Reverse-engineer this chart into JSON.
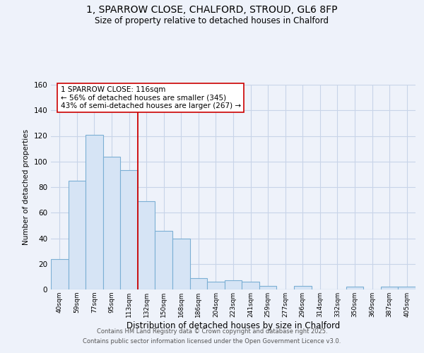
{
  "title": "1, SPARROW CLOSE, CHALFORD, STROUD, GL6 8FP",
  "subtitle": "Size of property relative to detached houses in Chalford",
  "xlabel": "Distribution of detached houses by size in Chalford",
  "ylabel": "Number of detached properties",
  "bar_labels": [
    "40sqm",
    "59sqm",
    "77sqm",
    "95sqm",
    "113sqm",
    "132sqm",
    "150sqm",
    "168sqm",
    "186sqm",
    "204sqm",
    "223sqm",
    "241sqm",
    "259sqm",
    "277sqm",
    "296sqm",
    "314sqm",
    "332sqm",
    "350sqm",
    "369sqm",
    "387sqm",
    "405sqm"
  ],
  "bar_values": [
    24,
    85,
    121,
    104,
    93,
    69,
    46,
    40,
    9,
    6,
    7,
    6,
    3,
    0,
    3,
    0,
    0,
    2,
    0,
    2,
    2
  ],
  "bar_color": "#d6e4f5",
  "bar_edge_color": "#7bafd4",
  "vline_x": 4.5,
  "vline_color": "#cc0000",
  "annotation_title": "1 SPARROW CLOSE: 116sqm",
  "annotation_line1": "← 56% of detached houses are smaller (345)",
  "annotation_line2": "43% of semi-detached houses are larger (267) →",
  "annotation_box_color": "#ffffff",
  "annotation_box_edge": "#cc0000",
  "ylim": [
    0,
    160
  ],
  "yticks": [
    0,
    20,
    40,
    60,
    80,
    100,
    120,
    140,
    160
  ],
  "background_color": "#eef2fa",
  "grid_color": "#c8d4e8",
  "footer_line1": "Contains HM Land Registry data © Crown copyright and database right 2025.",
  "footer_line2": "Contains public sector information licensed under the Open Government Licence v3.0."
}
